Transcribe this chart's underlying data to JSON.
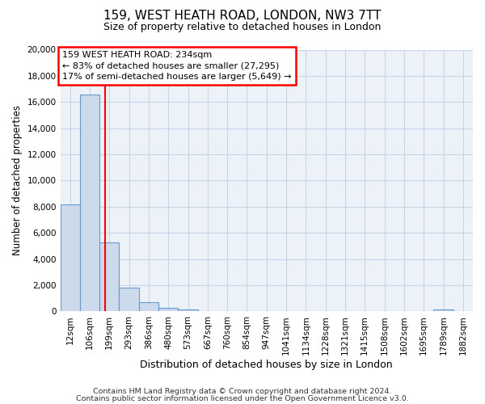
{
  "title_line1": "159, WEST HEATH ROAD, LONDON, NW3 7TT",
  "title_line2": "Size of property relative to detached houses in London",
  "xlabel": "Distribution of detached houses by size in London",
  "ylabel": "Number of detached properties",
  "bar_labels": [
    "12sqm",
    "106sqm",
    "199sqm",
    "293sqm",
    "386sqm",
    "480sqm",
    "573sqm",
    "667sqm",
    "760sqm",
    "854sqm",
    "947sqm",
    "1041sqm",
    "1134sqm",
    "1228sqm",
    "1321sqm",
    "1415sqm",
    "1508sqm",
    "1602sqm",
    "1695sqm",
    "1789sqm",
    "1882sqm"
  ],
  "bar_values": [
    8200,
    16600,
    5300,
    1800,
    700,
    250,
    150,
    0,
    0,
    0,
    0,
    0,
    0,
    0,
    0,
    0,
    0,
    0,
    0,
    150,
    0
  ],
  "bar_color": "#cddaec",
  "bar_edge_color": "#6699cc",
  "ylim": [
    0,
    20000
  ],
  "yticks": [
    0,
    2000,
    4000,
    6000,
    8000,
    10000,
    12000,
    14000,
    16000,
    18000,
    20000
  ],
  "red_line_x": 2.28,
  "annotation_line1": "159 WEST HEATH ROAD: 234sqm",
  "annotation_line2": "← 83% of detached houses are smaller (27,295)",
  "annotation_line3": "17% of semi-detached houses are larger (5,649) →",
  "footer_line1": "Contains HM Land Registry data © Crown copyright and database right 2024.",
  "footer_line2": "Contains public sector information licensed under the Open Government Licence v3.0.",
  "background_color": "#ffffff",
  "plot_bg_color": "#edf2f9",
  "grid_color": "#c8d4e8",
  "title_fontsize": 11,
  "subtitle_fontsize": 9,
  "ylabel_fontsize": 8.5,
  "xlabel_fontsize": 9,
  "tick_fontsize": 7.5,
  "annot_fontsize": 8,
  "footer_fontsize": 6.8
}
